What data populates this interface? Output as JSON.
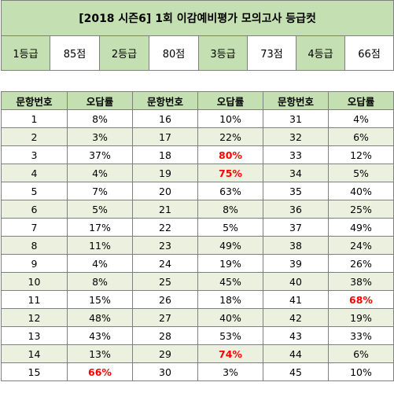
{
  "title": "[2018 시즌6] 1회 이감예비평가 모의고사 등급컷",
  "grades": [
    {
      "label": "1등급",
      "score": "85점"
    },
    {
      "label": "2등급",
      "score": "80점"
    },
    {
      "label": "3등급",
      "score": "73점"
    },
    {
      "label": "4등급",
      "score": "66점"
    }
  ],
  "table": {
    "headers": [
      "문항번호",
      "오답률",
      "문항번호",
      "오답률",
      "문항번호",
      "오답률"
    ],
    "highlight_color": "#ff0000",
    "header_color": "#c4dfb2",
    "alt_row_color": "#ebf1de",
    "rows": [
      [
        {
          "q": "1",
          "r": "8%"
        },
        {
          "q": "16",
          "r": "10%"
        },
        {
          "q": "31",
          "r": "4%"
        }
      ],
      [
        {
          "q": "2",
          "r": "3%"
        },
        {
          "q": "17",
          "r": "22%"
        },
        {
          "q": "32",
          "r": "6%"
        }
      ],
      [
        {
          "q": "3",
          "r": "37%"
        },
        {
          "q": "18",
          "r": "80%",
          "hi": true
        },
        {
          "q": "33",
          "r": "12%"
        }
      ],
      [
        {
          "q": "4",
          "r": "4%"
        },
        {
          "q": "19",
          "r": "75%",
          "hi": true
        },
        {
          "q": "34",
          "r": "5%"
        }
      ],
      [
        {
          "q": "5",
          "r": "7%"
        },
        {
          "q": "20",
          "r": "63%"
        },
        {
          "q": "35",
          "r": "40%"
        }
      ],
      [
        {
          "q": "6",
          "r": "5%"
        },
        {
          "q": "21",
          "r": "8%"
        },
        {
          "q": "36",
          "r": "25%"
        }
      ],
      [
        {
          "q": "7",
          "r": "17%"
        },
        {
          "q": "22",
          "r": "5%"
        },
        {
          "q": "37",
          "r": "49%"
        }
      ],
      [
        {
          "q": "8",
          "r": "11%"
        },
        {
          "q": "23",
          "r": "49%"
        },
        {
          "q": "38",
          "r": "24%"
        }
      ],
      [
        {
          "q": "9",
          "r": "4%"
        },
        {
          "q": "24",
          "r": "19%"
        },
        {
          "q": "39",
          "r": "26%"
        }
      ],
      [
        {
          "q": "10",
          "r": "8%"
        },
        {
          "q": "25",
          "r": "45%"
        },
        {
          "q": "40",
          "r": "38%"
        }
      ],
      [
        {
          "q": "11",
          "r": "15%"
        },
        {
          "q": "26",
          "r": "18%"
        },
        {
          "q": "41",
          "r": "68%",
          "hi": true
        }
      ],
      [
        {
          "q": "12",
          "r": "48%"
        },
        {
          "q": "27",
          "r": "40%"
        },
        {
          "q": "42",
          "r": "19%"
        }
      ],
      [
        {
          "q": "13",
          "r": "43%"
        },
        {
          "q": "28",
          "r": "53%"
        },
        {
          "q": "43",
          "r": "33%"
        }
      ],
      [
        {
          "q": "14",
          "r": "13%"
        },
        {
          "q": "29",
          "r": "74%",
          "hi": true
        },
        {
          "q": "44",
          "r": "6%"
        }
      ],
      [
        {
          "q": "15",
          "r": "66%",
          "hi": true
        },
        {
          "q": "30",
          "r": "3%"
        },
        {
          "q": "45",
          "r": "10%"
        }
      ]
    ]
  }
}
